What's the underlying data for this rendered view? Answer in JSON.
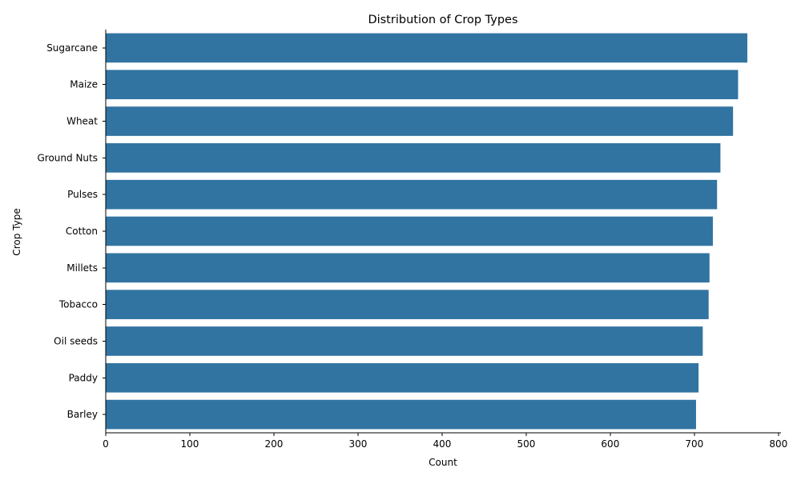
{
  "chart_data": {
    "type": "bar",
    "orientation": "horizontal",
    "title": "Distribution of Crop Types",
    "xlabel": "Count",
    "ylabel": "Crop Type",
    "categories": [
      "Sugarcane",
      "Maize",
      "Wheat",
      "Ground Nuts",
      "Pulses",
      "Cotton",
      "Millets",
      "Tobacco",
      "Oil seeds",
      "Paddy",
      "Barley"
    ],
    "values": [
      763,
      752,
      746,
      731,
      727,
      722,
      718,
      717,
      710,
      705,
      702
    ],
    "xlim": [
      0,
      803
    ],
    "xticks": [
      0,
      100,
      200,
      300,
      400,
      500,
      600,
      700,
      800
    ],
    "grid": false,
    "legend": "none",
    "bar_color": "#3274a1"
  }
}
